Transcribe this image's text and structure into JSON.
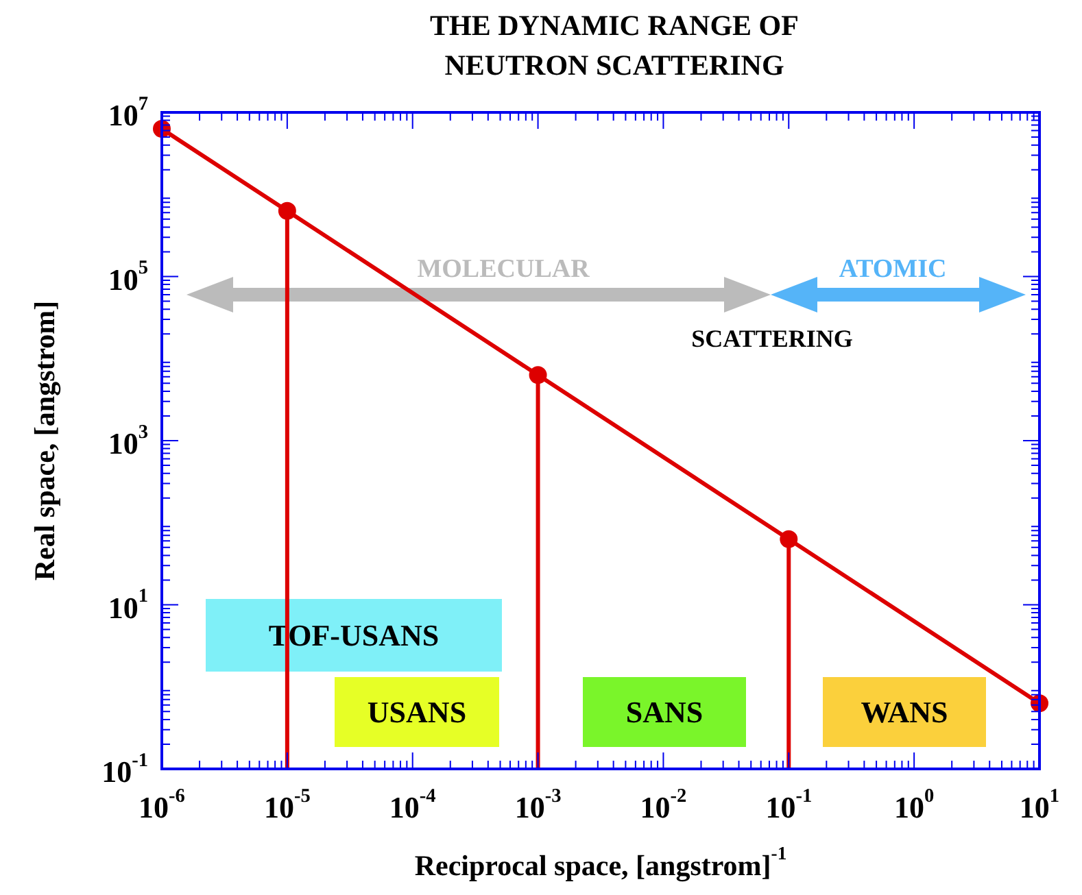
{
  "chart_data": {
    "type": "line",
    "title": "THE DYNAMIC RANGE OF\nNEUTRON SCATTERING",
    "xlabel": "Reciprocal space, [angstrom]$^{-1}$",
    "ylabel": "Real space, [angstrom]",
    "log": "xy",
    "marker": "circle",
    "xlim": [
      1e-06,
      10
    ],
    "ylim": [
      0.1,
      10000000.0
    ],
    "xticks": [
      {
        "value": 1e-06,
        "label": "10$^{-6}$"
      },
      {
        "value": 1e-05,
        "label": "10$^{-5}$"
      },
      {
        "value": 0.0001,
        "label": "10$^{-4}$"
      },
      {
        "value": 0.001,
        "label": "10$^{-3}$"
      },
      {
        "value": 0.01,
        "label": "10$^{-2}$"
      },
      {
        "value": 0.1,
        "label": "10$^{-1}$"
      },
      {
        "value": 1,
        "label": "10$^{0}$"
      },
      {
        "value": 10,
        "label": "10$^{1}$"
      }
    ],
    "yticks": [
      {
        "value": 0.1,
        "label": "10$^{-1}$"
      },
      {
        "value": 10,
        "label": "10$^{1}$"
      },
      {
        "value": 1000,
        "label": "10$^{3}$"
      },
      {
        "value": 100000,
        "label": "10$^{5}$"
      },
      {
        "value": 10000000,
        "label": "10$^{7}$"
      }
    ],
    "series": [
      {
        "color": "#dd0000",
        "x": [
          1e-06,
          1e-05,
          0.001,
          0.1,
          10
        ],
        "values": [
          6300000,
          630000,
          6300,
          63,
          0.63
        ]
      },
      {
        "color": "#dd0000",
        "marker": "none",
        "x": [
          1e-05,
          1e-05
        ],
        "values": [
          0.1,
          630000
        ]
      },
      {
        "color": "#dd0000",
        "marker": "none",
        "x": [
          0.001,
          0.001
        ],
        "values": [
          0.1,
          6300
        ]
      },
      {
        "color": "#dd0000",
        "marker": "none",
        "x": [
          0.1,
          0.1
        ],
        "values": [
          0.1,
          63
        ]
      }
    ],
    "annotations": [
      "MOLECULAR",
      "ATOMIC",
      "SCATTERING",
      "TOF-USANS",
      "USANS",
      "SANS",
      "WANS"
    ]
  }
}
